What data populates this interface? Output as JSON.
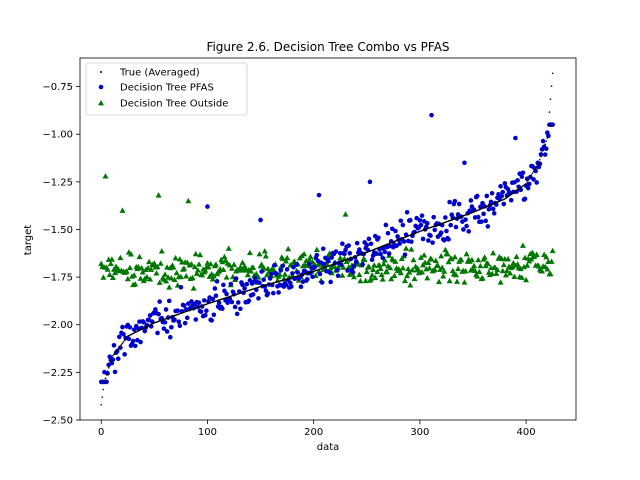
{
  "chart_data": {
    "type": "scatter",
    "title": "Figure 2.6. Decision Tree Combo vs PFAS",
    "xlabel": "data",
    "ylabel": "target",
    "xlim": [
      -20,
      447
    ],
    "ylim": [
      -2.5,
      -0.6
    ],
    "xticks": [
      0,
      100,
      200,
      300,
      400
    ],
    "xtick_labels": [
      "0",
      "100",
      "200",
      "300",
      "400"
    ],
    "yticks": [
      -2.5,
      -2.25,
      -2.0,
      -1.75,
      -1.5,
      -1.25,
      -1.0,
      -0.75
    ],
    "ytick_labels": [
      "−2.50",
      "−2.25",
      "−2.00",
      "−1.75",
      "−1.50",
      "−1.25",
      "−1.00",
      "−0.75"
    ],
    "grid": false,
    "legend_position": "top-left",
    "n_points": 426,
    "series": [
      {
        "name": "True (Averaged)",
        "marker": "dot",
        "color": "#000000",
        "description": "sorted ascending; x = index 0..425",
        "control_points": [
          [
            0,
            -2.42
          ],
          [
            3,
            -2.3
          ],
          [
            10,
            -2.17
          ],
          [
            25,
            -2.06
          ],
          [
            50,
            -1.99
          ],
          [
            100,
            -1.89
          ],
          [
            150,
            -1.8
          ],
          [
            200,
            -1.72
          ],
          [
            250,
            -1.62
          ],
          [
            300,
            -1.51
          ],
          [
            350,
            -1.41
          ],
          [
            380,
            -1.34
          ],
          [
            400,
            -1.26
          ],
          [
            412,
            -1.15
          ],
          [
            420,
            -1.02
          ],
          [
            425,
            -0.68
          ]
        ]
      },
      {
        "name": "Decision Tree PFAS",
        "marker": "circle",
        "color": "#0000cc",
        "description": "follows true curve with scatter",
        "outliers": [
          [
            311,
            -0.9
          ],
          [
            390,
            -1.02
          ],
          [
            342,
            -1.15
          ],
          [
            205,
            -1.32
          ],
          [
            253,
            -1.25
          ],
          [
            100,
            -1.38
          ],
          [
            150,
            -1.45
          ]
        ]
      },
      {
        "name": "Decision Tree Outside",
        "marker": "triangle",
        "color": "#007700",
        "description": "mostly flat band around -1.70",
        "outliers": [
          [
            4,
            -1.22
          ],
          [
            20,
            -1.4
          ],
          [
            54,
            -1.32
          ],
          [
            82,
            -1.35
          ],
          [
            230,
            -1.42
          ]
        ]
      }
    ]
  }
}
